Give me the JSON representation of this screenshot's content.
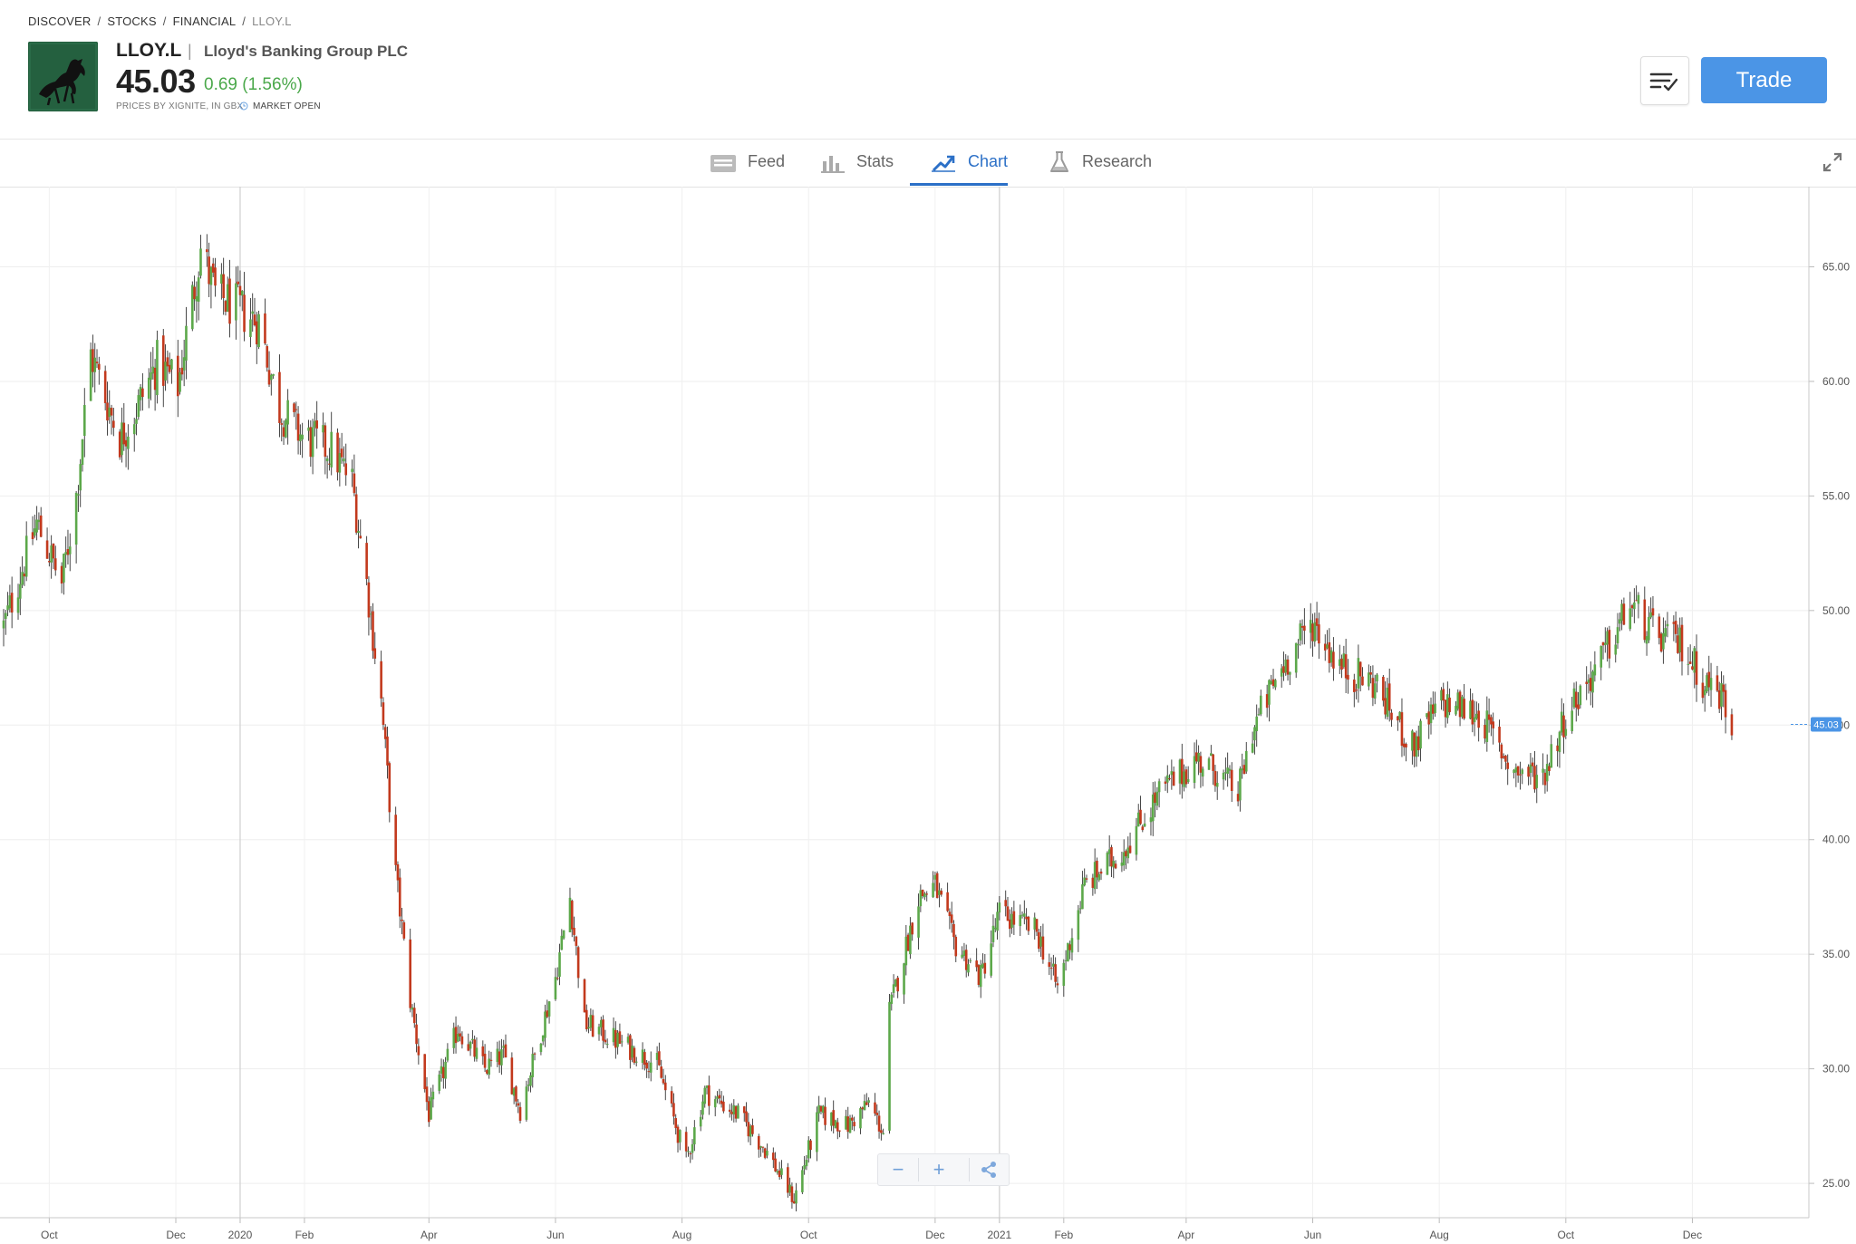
{
  "breadcrumb": [
    "DISCOVER",
    "STOCKS",
    "FINANCIAL",
    "LLOY.L"
  ],
  "instrument": {
    "ticker": "LLOY.L",
    "separator": "|",
    "name": "Lloyd's Banking Group PLC",
    "price": "45.03",
    "change": "0.69 (1.56%)",
    "price_source": "PRICES BY XIGNITE, IN GBX",
    "market_status": "MARKET OPEN",
    "logo_icon": "black-horse-logo"
  },
  "actions": {
    "watchlist_icon": "watchlist-check-icon",
    "trade_label": "Trade"
  },
  "tabs": [
    {
      "label": "Feed",
      "icon": "feed-icon",
      "active": false
    },
    {
      "label": "Stats",
      "icon": "bar-chart-icon",
      "active": false
    },
    {
      "label": "Chart",
      "icon": "trend-chart-icon",
      "active": true
    },
    {
      "label": "Research",
      "icon": "flask-icon",
      "active": false
    }
  ],
  "colors": {
    "up": "#5ca84a",
    "down": "#c2391d",
    "accent": "#2c70c7",
    "trade": "#4b95e6",
    "price_tag": "#4b95e6"
  },
  "chart_data": {
    "type": "candlestick",
    "y_ticks": [
      "65.00",
      "60.00",
      "55.00",
      "50.00",
      "45.00",
      "40.00",
      "35.00",
      "30.00",
      "25.00"
    ],
    "ylim": [
      23.5,
      68.5
    ],
    "x_ticks": [
      "Oct",
      "Dec",
      "2020",
      "Feb",
      "Apr",
      "Jun",
      "Aug",
      "Oct",
      "Dec",
      "2021",
      "Feb",
      "Apr",
      "Jun",
      "Aug",
      "Oct",
      "Dec"
    ],
    "x_range": [
      "2019-09-09",
      "2021-12-31"
    ],
    "x_tick_dates": [
      "2019-10-01",
      "2019-12-01",
      "2020-01-01",
      "2020-02-01",
      "2020-04-01",
      "2020-06-01",
      "2020-08-01",
      "2020-10-01",
      "2020-12-01",
      "2021-01-01",
      "2021-02-01",
      "2021-04-01",
      "2021-06-01",
      "2021-08-01",
      "2021-10-01",
      "2021-12-01"
    ],
    "year_dividers": [
      "2020-01-01",
      "2021-01-01"
    ],
    "current_price": "45.03",
    "current_value": 45.03,
    "price_path": [
      [
        "2019-09-09",
        49.3
      ],
      [
        "2019-09-25",
        53.8
      ],
      [
        "2019-10-07",
        51.2
      ],
      [
        "2019-10-14",
        55.0
      ],
      [
        "2019-10-21",
        61.2
      ],
      [
        "2019-11-04",
        57.5
      ],
      [
        "2019-11-12",
        58.8
      ],
      [
        "2019-11-22",
        60.8
      ],
      [
        "2019-12-02",
        59.8
      ],
      [
        "2019-12-13",
        65.8
      ],
      [
        "2019-12-20",
        63.8
      ],
      [
        "2020-01-10",
        62.6
      ],
      [
        "2020-01-20",
        58.8
      ],
      [
        "2020-01-31",
        57.6
      ],
      [
        "2020-02-14",
        57.0
      ],
      [
        "2020-02-24",
        55.6
      ],
      [
        "2020-03-02",
        51.2
      ],
      [
        "2020-03-09",
        46.0
      ],
      [
        "2020-03-16",
        38.5
      ],
      [
        "2020-03-23",
        33.0
      ],
      [
        "2020-04-01",
        28.0
      ],
      [
        "2020-04-15",
        31.8
      ],
      [
        "2020-04-28",
        30.0
      ],
      [
        "2020-05-07",
        30.6
      ],
      [
        "2020-05-15",
        28.2
      ],
      [
        "2020-06-01",
        34.0
      ],
      [
        "2020-06-08",
        37.5
      ],
      [
        "2020-06-15",
        32.0
      ],
      [
        "2020-07-01",
        31.2
      ],
      [
        "2020-07-20",
        30.2
      ],
      [
        "2020-08-03",
        26.0
      ],
      [
        "2020-08-12",
        29.0
      ],
      [
        "2020-08-28",
        28.0
      ],
      [
        "2020-09-10",
        26.5
      ],
      [
        "2020-09-24",
        24.3
      ],
      [
        "2020-10-06",
        28.0
      ],
      [
        "2020-10-20",
        27.5
      ],
      [
        "2020-10-30",
        28.5
      ],
      [
        "2020-11-06",
        27.2
      ],
      [
        "2020-11-09",
        32.5
      ],
      [
        "2020-11-23",
        37.5
      ],
      [
        "2020-12-01",
        38.0
      ],
      [
        "2020-12-10",
        35.5
      ],
      [
        "2020-12-23",
        34.0
      ],
      [
        "2021-01-01",
        36.8
      ],
      [
        "2021-01-19",
        36.0
      ],
      [
        "2021-01-29",
        33.5
      ],
      [
        "2021-02-11",
        38.0
      ],
      [
        "2021-03-01",
        39.5
      ],
      [
        "2021-03-19",
        42.0
      ],
      [
        "2021-04-06",
        43.5
      ],
      [
        "2021-04-16",
        43.0
      ],
      [
        "2021-04-26",
        42.0
      ],
      [
        "2021-05-03",
        44.8
      ],
      [
        "2021-05-17",
        47.5
      ],
      [
        "2021-06-01",
        49.5
      ],
      [
        "2021-06-15",
        47.5
      ],
      [
        "2021-07-01",
        46.8
      ],
      [
        "2021-07-19",
        44.0
      ],
      [
        "2021-08-02",
        46.0
      ],
      [
        "2021-08-20",
        45.5
      ],
      [
        "2021-09-06",
        43.0
      ],
      [
        "2021-09-20",
        42.8
      ],
      [
        "2021-10-01",
        45.5
      ],
      [
        "2021-10-18",
        47.8
      ],
      [
        "2021-11-01",
        50.3
      ],
      [
        "2021-11-12",
        49.0
      ],
      [
        "2021-11-26",
        48.5
      ],
      [
        "2021-12-06",
        47.0
      ],
      [
        "2021-12-15",
        46.3
      ],
      [
        "2021-12-20",
        45.03
      ]
    ]
  }
}
